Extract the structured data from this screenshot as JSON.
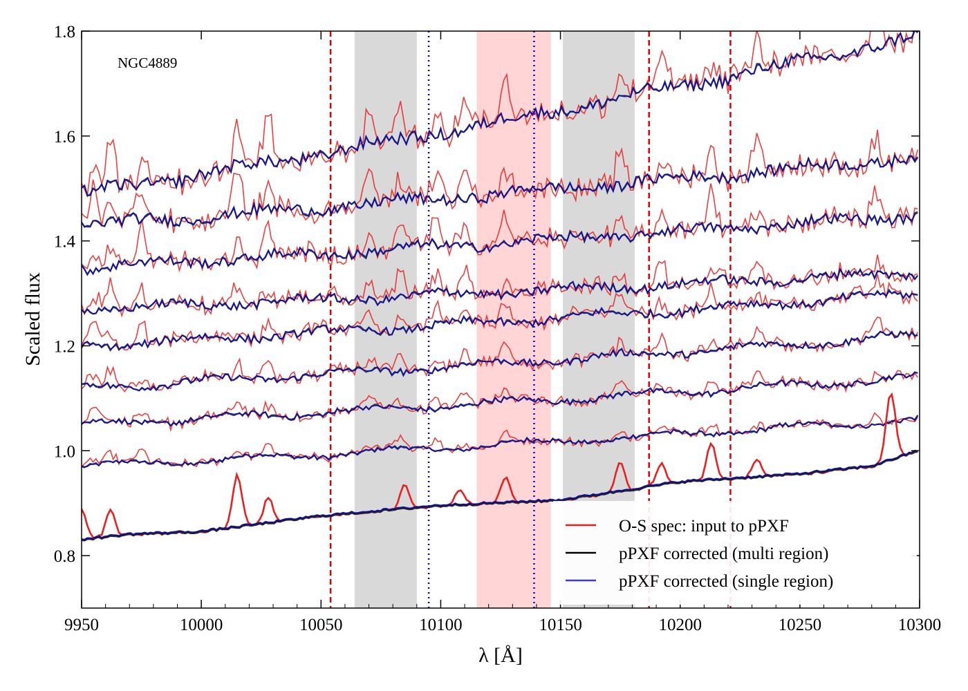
{
  "chart_data": {
    "type": "line",
    "annotation": "NGC4889",
    "xlabel": "λ [Å]",
    "ylabel": "Scaled flux",
    "xlim": [
      9950,
      10300
    ],
    "ylim": [
      0.7,
      1.8
    ],
    "xticks": [
      9950,
      10000,
      10050,
      10100,
      10150,
      10200,
      10250,
      10300
    ],
    "yticks": [
      0.8,
      1.0,
      1.2,
      1.4,
      1.6,
      1.8
    ],
    "grid": false,
    "legend_position": "lower-right",
    "colors": {
      "input": "#e82020",
      "multi": "#222222",
      "single": "#3a3ae8",
      "single_dark": "#10109a",
      "gray_band": "#d9d9d9",
      "pink_band": "#ffd5d5",
      "red_line": "#e00000",
      "blue_line": "#0000ee"
    },
    "shaded_regions": [
      {
        "kind": "gray",
        "from": 10064,
        "to": 10090
      },
      {
        "kind": "pink",
        "from": 10115,
        "to": 10146
      },
      {
        "kind": "gray",
        "from": 10151,
        "to": 10181
      }
    ],
    "vlines": [
      {
        "x": 10054,
        "style": "red-dashed"
      },
      {
        "x": 10187,
        "style": "red-dashed"
      },
      {
        "x": 10221,
        "style": "red-dashed"
      },
      {
        "x": 10095,
        "style": "blue-dotted"
      },
      {
        "x": 10139,
        "style": "blue-dotted"
      }
    ],
    "emission_features": [
      9955,
      9962,
      9975,
      10015,
      10028,
      10070,
      10083,
      10098,
      10110,
      10127,
      10175,
      10192,
      10213,
      10232,
      10282
    ],
    "legend": [
      {
        "label": "O-S spec: input to pPXF",
        "color": "#e82020"
      },
      {
        "label": "pPXF corrected (multi region)",
        "color": "#000000"
      },
      {
        "label": "pPXF corrected (single region)",
        "color": "#3a3ae8"
      }
    ],
    "bottom_spectrum": {
      "baseline": [
        [
          9950,
          0.83
        ],
        [
          9970,
          0.84
        ],
        [
          10000,
          0.845
        ],
        [
          10050,
          0.875
        ],
        [
          10100,
          0.895
        ],
        [
          10150,
          0.905
        ],
        [
          10200,
          0.94
        ],
        [
          10250,
          0.955
        ],
        [
          10280,
          0.97
        ],
        [
          10300,
          1.0
        ]
      ],
      "input_peaks": [
        [
          9950,
          0.06
        ],
        [
          9962,
          0.05
        ],
        [
          10015,
          0.1
        ],
        [
          10028,
          0.05
        ],
        [
          10085,
          0.045
        ],
        [
          10108,
          0.03
        ],
        [
          10127,
          0.05
        ],
        [
          10175,
          0.055
        ],
        [
          10192,
          0.04
        ],
        [
          10213,
          0.07
        ],
        [
          10232,
          0.035
        ],
        [
          10288,
          0.13
        ]
      ]
    },
    "stacked_spectra": [
      {
        "offset": 0.0,
        "start": 0.97,
        "end": 1.06,
        "emission_scale": 0.35
      },
      {
        "offset": 0.0,
        "start": 1.05,
        "end": 1.14,
        "emission_scale": 0.45
      },
      {
        "offset": 0.0,
        "start": 1.12,
        "end": 1.22,
        "emission_scale": 0.55
      },
      {
        "offset": 0.0,
        "start": 1.2,
        "end": 1.3,
        "emission_scale": 0.65
      },
      {
        "offset": 0.0,
        "start": 1.27,
        "end": 1.34,
        "emission_scale": 0.8
      },
      {
        "offset": 0.0,
        "start": 1.35,
        "end": 1.45,
        "emission_scale": 1.0
      },
      {
        "offset": 0.0,
        "start": 1.43,
        "end": 1.56,
        "emission_scale": 1.2
      },
      {
        "offset": 0.0,
        "start": 1.49,
        "end": 1.79,
        "emission_scale": 1.4
      }
    ]
  }
}
